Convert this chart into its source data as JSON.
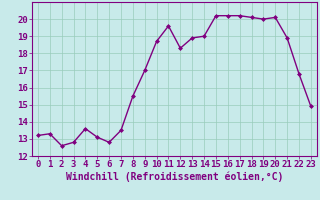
{
  "x": [
    0,
    1,
    2,
    3,
    4,
    5,
    6,
    7,
    8,
    9,
    10,
    11,
    12,
    13,
    14,
    15,
    16,
    17,
    18,
    19,
    20,
    21,
    22,
    23
  ],
  "y": [
    13.2,
    13.3,
    12.6,
    12.8,
    13.6,
    13.1,
    12.8,
    13.5,
    15.5,
    17.0,
    18.7,
    19.6,
    18.3,
    18.9,
    19.0,
    20.2,
    20.2,
    20.2,
    20.1,
    20.0,
    20.1,
    18.9,
    16.8,
    14.9
  ],
  "line_color": "#800080",
  "marker": "D",
  "marker_size": 2,
  "xlabel": "Windchill (Refroidissement éolien,°C)",
  "xlabel_fontsize": 7,
  "xlim": [
    -0.5,
    23.5
  ],
  "ylim": [
    12,
    21
  ],
  "yticks": [
    12,
    13,
    14,
    15,
    16,
    17,
    18,
    19,
    20
  ],
  "xticks": [
    0,
    1,
    2,
    3,
    4,
    5,
    6,
    7,
    8,
    9,
    10,
    11,
    12,
    13,
    14,
    15,
    16,
    17,
    18,
    19,
    20,
    21,
    22,
    23
  ],
  "bg_color": "#c8eaea",
  "grid_color": "#99ccbb",
  "tick_label_fontsize": 6.5,
  "line_width": 1.0
}
